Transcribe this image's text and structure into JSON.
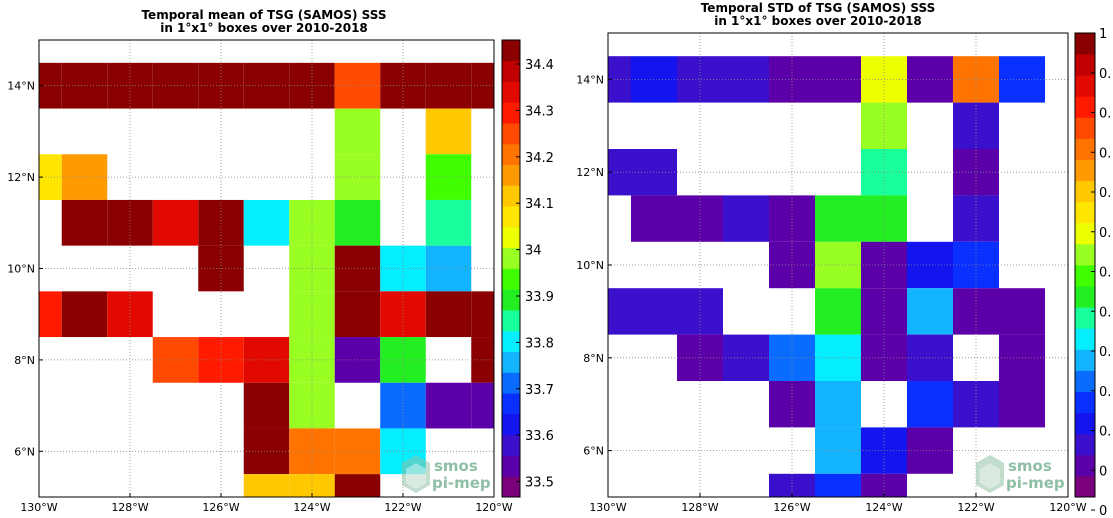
{
  "chart_data": [
    {
      "type": "heatmap",
      "title_lines": [
        "Temporal mean of TSG (SAMOS) SSS",
        "in 1°x1° boxes over 2010-2018"
      ],
      "x_ticks": [
        "130°W",
        "128°W",
        "126°W",
        "124°W",
        "122°W",
        "120°W"
      ],
      "y_ticks": [
        "14°N",
        "12°N",
        "10°N",
        "8°N",
        "6°N"
      ],
      "xlim": [
        -130,
        -120
      ],
      "ylim": [
        5,
        15
      ],
      "grid": true,
      "colorbar": {
        "range": [
          33.45,
          34.5
        ],
        "ticks": [
          "34.4",
          "34.3",
          "34.2",
          "34.1",
          "34",
          "33.9",
          "33.8",
          "33.7",
          "33.6",
          "33.5"
        ]
      },
      "cells": [
        {
          "lon": -130,
          "lat": 14,
          "v": 34.46
        },
        {
          "lon": -129,
          "lat": 14,
          "v": 34.46
        },
        {
          "lon": -128,
          "lat": 14,
          "v": 34.46
        },
        {
          "lon": -127,
          "lat": 14,
          "v": 34.46
        },
        {
          "lon": -126,
          "lat": 14,
          "v": 34.46
        },
        {
          "lon": -125,
          "lat": 14,
          "v": 34.46
        },
        {
          "lon": -124,
          "lat": 14,
          "v": 34.46
        },
        {
          "lon": -123,
          "lat": 14,
          "v": 34.3
        },
        {
          "lon": -122,
          "lat": 14,
          "v": 34.46
        },
        {
          "lon": -121,
          "lat": 14,
          "v": 34.46
        },
        {
          "lon": -120,
          "lat": 14,
          "v": 34.46
        },
        {
          "lon": -123,
          "lat": 13,
          "v": 33.98
        },
        {
          "lon": -121,
          "lat": 13,
          "v": 34.15
        },
        {
          "lon": -130,
          "lat": 12,
          "v": 34.08
        },
        {
          "lon": -129,
          "lat": 12,
          "v": 34.2
        },
        {
          "lon": -123,
          "lat": 12,
          "v": 33.98
        },
        {
          "lon": -121,
          "lat": 12,
          "v": 33.93
        },
        {
          "lon": -129,
          "lat": 11,
          "v": 34.46
        },
        {
          "lon": -128,
          "lat": 11,
          "v": 34.46
        },
        {
          "lon": -127,
          "lat": 11,
          "v": 34.4
        },
        {
          "lon": -126,
          "lat": 11,
          "v": 34.46
        },
        {
          "lon": -125,
          "lat": 11,
          "v": 33.8
        },
        {
          "lon": -124,
          "lat": 11,
          "v": 33.98
        },
        {
          "lon": -123,
          "lat": 11,
          "v": 33.92
        },
        {
          "lon": -121,
          "lat": 11,
          "v": 33.85
        },
        {
          "lon": -126,
          "lat": 10,
          "v": 34.46
        },
        {
          "lon": -124,
          "lat": 10,
          "v": 33.98
        },
        {
          "lon": -123,
          "lat": 10,
          "v": 34.46
        },
        {
          "lon": -122,
          "lat": 10,
          "v": 33.8
        },
        {
          "lon": -121,
          "lat": 10,
          "v": 33.75
        },
        {
          "lon": -130,
          "lat": 9,
          "v": 34.35
        },
        {
          "lon": -129,
          "lat": 9,
          "v": 34.46
        },
        {
          "lon": -128,
          "lat": 9,
          "v": 34.4
        },
        {
          "lon": -124,
          "lat": 9,
          "v": 33.98
        },
        {
          "lon": -123,
          "lat": 9,
          "v": 34.46
        },
        {
          "lon": -122,
          "lat": 9,
          "v": 34.4
        },
        {
          "lon": -121,
          "lat": 9,
          "v": 34.46
        },
        {
          "lon": -120,
          "lat": 9,
          "v": 34.46
        },
        {
          "lon": -127,
          "lat": 8,
          "v": 34.3
        },
        {
          "lon": -126,
          "lat": 8,
          "v": 34.35
        },
        {
          "lon": -125,
          "lat": 8,
          "v": 34.4
        },
        {
          "lon": -124,
          "lat": 8,
          "v": 33.98
        },
        {
          "lon": -123,
          "lat": 8,
          "v": 33.5
        },
        {
          "lon": -122,
          "lat": 8,
          "v": 33.92
        },
        {
          "lon": -120,
          "lat": 8,
          "v": 34.46
        },
        {
          "lon": -125,
          "lat": 7,
          "v": 34.46
        },
        {
          "lon": -124,
          "lat": 7,
          "v": 33.98
        },
        {
          "lon": -122,
          "lat": 7,
          "v": 33.7
        },
        {
          "lon": -121,
          "lat": 7,
          "v": 33.5
        },
        {
          "lon": -120,
          "lat": 7,
          "v": 33.5
        },
        {
          "lon": -125,
          "lat": 6,
          "v": 34.46
        },
        {
          "lon": -124,
          "lat": 6,
          "v": 34.25
        },
        {
          "lon": -123,
          "lat": 6,
          "v": 34.25
        },
        {
          "lon": -122,
          "lat": 6,
          "v": 33.8
        },
        {
          "lon": -125,
          "lat": 5,
          "v": 34.15
        },
        {
          "lon": -124,
          "lat": 5,
          "v": 34.15
        },
        {
          "lon": -123,
          "lat": 5,
          "v": 34.46
        }
      ]
    },
    {
      "type": "heatmap",
      "title_lines": [
        "Temporal STD of TSG (SAMOS) SSS",
        "in 1°x1° boxes over 2010-2018"
      ],
      "x_ticks": [
        "130°W",
        "128°W",
        "126°W",
        "124°W",
        "122°W",
        "120°W"
      ],
      "y_ticks": [
        "14°N",
        "12°N",
        "10°N",
        "8°N",
        "6°N"
      ],
      "xlim": [
        -130,
        -120
      ],
      "ylim": [
        5,
        15
      ],
      "grid": true,
      "colorbar": {
        "range": [
          0,
          1
        ],
        "ticks": [
          "1",
          "0.",
          "0.",
          "0.",
          "0.",
          "0.",
          "0.",
          "0.",
          "0.",
          "0.",
          "0.",
          "0",
          "0"
        ]
      },
      "cells": [
        {
          "lon": -130,
          "lat": 14,
          "v": 0.1
        },
        {
          "lon": -129,
          "lat": 14,
          "v": 0.15
        },
        {
          "lon": -128,
          "lat": 14,
          "v": 0.12
        },
        {
          "lon": -127,
          "lat": 14,
          "v": 0.12
        },
        {
          "lon": -126,
          "lat": 14,
          "v": 0.05
        },
        {
          "lon": -125,
          "lat": 14,
          "v": 0.05
        },
        {
          "lon": -124,
          "lat": 14,
          "v": 0.55
        },
        {
          "lon": -123,
          "lat": 14,
          "v": 0.05
        },
        {
          "lon": -122,
          "lat": 14,
          "v": 0.75
        },
        {
          "lon": -121,
          "lat": 14,
          "v": 0.2
        },
        {
          "lon": -124,
          "lat": 13,
          "v": 0.5
        },
        {
          "lon": -122,
          "lat": 13,
          "v": 0.1
        },
        {
          "lon": -130,
          "lat": 12,
          "v": 0.1
        },
        {
          "lon": -129,
          "lat": 12,
          "v": 0.1
        },
        {
          "lon": -124,
          "lat": 12,
          "v": 0.4
        },
        {
          "lon": -122,
          "lat": 12,
          "v": 0.05
        },
        {
          "lon": -129,
          "lat": 11,
          "v": 0.05
        },
        {
          "lon": -128,
          "lat": 11,
          "v": 0.05
        },
        {
          "lon": -127,
          "lat": 11,
          "v": 0.1
        },
        {
          "lon": -126,
          "lat": 11,
          "v": 0.05
        },
        {
          "lon": -125,
          "lat": 11,
          "v": 0.45
        },
        {
          "lon": -124,
          "lat": 11,
          "v": 0.45
        },
        {
          "lon": -122,
          "lat": 11,
          "v": 0.1
        },
        {
          "lon": -126,
          "lat": 10,
          "v": 0.05
        },
        {
          "lon": -125,
          "lat": 10,
          "v": 0.5
        },
        {
          "lon": -124,
          "lat": 10,
          "v": 0.05
        },
        {
          "lon": -123,
          "lat": 10,
          "v": 0.15
        },
        {
          "lon": -122,
          "lat": 10,
          "v": 0.2
        },
        {
          "lon": -130,
          "lat": 9,
          "v": 0.1
        },
        {
          "lon": -129,
          "lat": 9,
          "v": 0.1
        },
        {
          "lon": -128,
          "lat": 9,
          "v": 0.1
        },
        {
          "lon": -125,
          "lat": 9,
          "v": 0.45
        },
        {
          "lon": -124,
          "lat": 9,
          "v": 0.05
        },
        {
          "lon": -123,
          "lat": 9,
          "v": 0.3
        },
        {
          "lon": -122,
          "lat": 9,
          "v": 0.05
        },
        {
          "lon": -121,
          "lat": 9,
          "v": 0.05
        },
        {
          "lon": -128,
          "lat": 8,
          "v": 0.05
        },
        {
          "lon": -127,
          "lat": 8,
          "v": 0.1
        },
        {
          "lon": -126,
          "lat": 8,
          "v": 0.25
        },
        {
          "lon": -125,
          "lat": 8,
          "v": 0.35
        },
        {
          "lon": -124,
          "lat": 8,
          "v": 0.05
        },
        {
          "lon": -123,
          "lat": 8,
          "v": 0.1
        },
        {
          "lon": -121,
          "lat": 8,
          "v": 0.05
        },
        {
          "lon": -126,
          "lat": 7,
          "v": 0.05
        },
        {
          "lon": -125,
          "lat": 7,
          "v": 0.3
        },
        {
          "lon": -123,
          "lat": 7,
          "v": 0.2
        },
        {
          "lon": -122,
          "lat": 7,
          "v": 0.1
        },
        {
          "lon": -121,
          "lat": 7,
          "v": 0.05
        },
        {
          "lon": -125,
          "lat": 6,
          "v": 0.3
        },
        {
          "lon": -124,
          "lat": 6,
          "v": 0.18
        },
        {
          "lon": -123,
          "lat": 6,
          "v": 0.05
        },
        {
          "lon": -126,
          "lat": 5,
          "v": 0.1
        },
        {
          "lon": -125,
          "lat": 5,
          "v": 0.2
        },
        {
          "lon": -124,
          "lat": 5,
          "v": 0.05
        }
      ]
    }
  ],
  "logo": {
    "line1": "smos",
    "line2": "pi-mep"
  },
  "colors": {
    "colormap": [
      "#7b007b",
      "#5b00a8",
      "#3a10cc",
      "#1414ee",
      "#0a30ff",
      "#0a6cff",
      "#13b4ff",
      "#05eeff",
      "#18ff9c",
      "#22ee22",
      "#40ff00",
      "#99ff22",
      "#eeff00",
      "#ffe600",
      "#ffc800",
      "#ff9b00",
      "#ff7300",
      "#ff4a00",
      "#ff1a00",
      "#e20a00",
      "#c00000",
      "#8a0000"
    ],
    "grid": "#888888",
    "logo": "#8fbfa4"
  }
}
